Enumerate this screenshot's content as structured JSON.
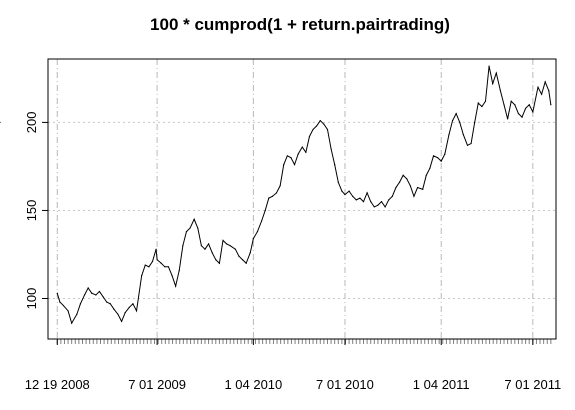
{
  "chart_data": {
    "type": "line",
    "title": "100 * cumprod(1 + return.pairtrading)",
    "xlabel": "",
    "ylabel": "",
    "ylim": [
      77,
      236
    ],
    "y_ticks": [
      100,
      150,
      200
    ],
    "x_ticks": [
      "12 19 2008",
      "7 01 2009",
      "1 04 2010",
      "7 01 2010",
      "1 04 2011",
      "7 01 2011"
    ],
    "x_tick_dates": [
      "2008-12-19",
      "2009-07-01",
      "2010-01-04",
      "2010-07-01",
      "2011-01-04",
      "2011-07-01"
    ],
    "x_range": [
      "2008-12-01",
      "2011-08-15"
    ],
    "grid": true,
    "series": [
      {
        "values_x": [
          "2008-12-19",
          "2008-12-24",
          "2008-12-31",
          "2009-01-09",
          "2009-01-16",
          "2009-01-26",
          "2009-02-02",
          "2009-02-10",
          "2009-02-17",
          "2009-02-24",
          "2009-03-04",
          "2009-03-11",
          "2009-03-18",
          "2009-03-25",
          "2009-04-01",
          "2009-04-08",
          "2009-04-16",
          "2009-04-23",
          "2009-04-30",
          "2009-05-08",
          "2009-05-15",
          "2009-05-22",
          "2009-06-01",
          "2009-06-08",
          "2009-06-15",
          "2009-06-22",
          "2009-06-29",
          "2009-07-01",
          "2009-07-09",
          "2009-07-16",
          "2009-07-23",
          "2009-07-30",
          "2009-08-06",
          "2009-08-13",
          "2009-08-20",
          "2009-08-27",
          "2009-09-03",
          "2009-09-11",
          "2009-09-18",
          "2009-09-25",
          "2009-10-02",
          "2009-10-09",
          "2009-10-16",
          "2009-10-23",
          "2009-10-30",
          "2009-11-06",
          "2009-11-13",
          "2009-11-20",
          "2009-11-30",
          "2009-12-07",
          "2009-12-14",
          "2009-12-21",
          "2009-12-29",
          "2010-01-04",
          "2010-01-12",
          "2010-01-20",
          "2010-01-27",
          "2010-02-03",
          "2010-02-10",
          "2010-02-18",
          "2010-02-25",
          "2010-03-04",
          "2010-03-11",
          "2010-03-18",
          "2010-03-25",
          "2010-04-01",
          "2010-04-09",
          "2010-04-16",
          "2010-04-23",
          "2010-04-30",
          "2010-05-07",
          "2010-05-14",
          "2010-05-21",
          "2010-05-28",
          "2010-06-04",
          "2010-06-11",
          "2010-06-18",
          "2010-06-25",
          "2010-07-01",
          "2010-07-09",
          "2010-07-16",
          "2010-07-23",
          "2010-07-30",
          "2010-08-06",
          "2010-08-13",
          "2010-08-20",
          "2010-08-27",
          "2010-09-03",
          "2010-09-10",
          "2010-09-17",
          "2010-09-24",
          "2010-10-01",
          "2010-10-08",
          "2010-10-15",
          "2010-10-22",
          "2010-10-29",
          "2010-11-05",
          "2010-11-12",
          "2010-11-19",
          "2010-11-29",
          "2010-12-06",
          "2010-12-13",
          "2010-12-20",
          "2010-12-28",
          "2011-01-04",
          "2011-01-11",
          "2011-01-19",
          "2011-01-26",
          "2011-02-02",
          "2011-02-09",
          "2011-02-16",
          "2011-02-24",
          "2011-03-03",
          "2011-03-10",
          "2011-03-17",
          "2011-03-24",
          "2011-03-31",
          "2011-04-07",
          "2011-04-14",
          "2011-04-21",
          "2011-04-29",
          "2011-05-06",
          "2011-05-13",
          "2011-05-20",
          "2011-05-27",
          "2011-06-03",
          "2011-06-10",
          "2011-06-17",
          "2011-06-24",
          "2011-07-01",
          "2011-07-11",
          "2011-07-18",
          "2011-07-25",
          "2011-08-01",
          "2011-08-05"
        ],
        "values": [
          103,
          98,
          96,
          93,
          86,
          91,
          97,
          102,
          106,
          103,
          102,
          104,
          101,
          98,
          97,
          94,
          91,
          87,
          92,
          95,
          97,
          93,
          113,
          119,
          118,
          121,
          128,
          122,
          120,
          118,
          118,
          113,
          107,
          116,
          130,
          138,
          140,
          145,
          140,
          130,
          128,
          131,
          126,
          122,
          120,
          133,
          131,
          130,
          128,
          124,
          122,
          120,
          126,
          134,
          138,
          144,
          150,
          157,
          158,
          160,
          164,
          176,
          181,
          180,
          176,
          182,
          186,
          183,
          192,
          196,
          198,
          201,
          199,
          196,
          185,
          176,
          166,
          161,
          159,
          161,
          158,
          156,
          157,
          155,
          160,
          155,
          152,
          153,
          155,
          152,
          156,
          158,
          163,
          166,
          170,
          168,
          164,
          158,
          163,
          162,
          170,
          174,
          181,
          180,
          178,
          182,
          193,
          201,
          205,
          200,
          193,
          187,
          188,
          200,
          211,
          209,
          212,
          232,
          222,
          228,
          218,
          210,
          202,
          212,
          210,
          205,
          203,
          208,
          210,
          206,
          220,
          216,
          223,
          218,
          210,
          200
        ]
      }
    ]
  }
}
